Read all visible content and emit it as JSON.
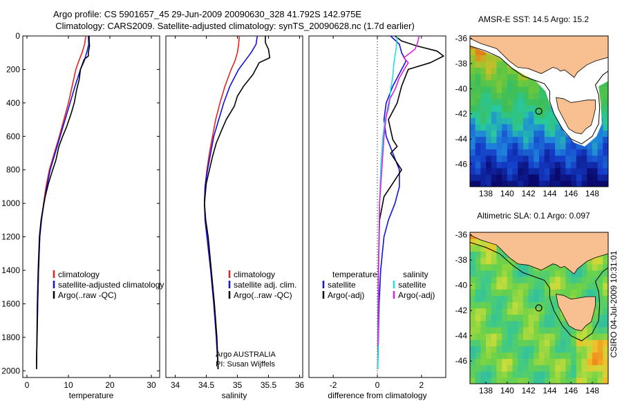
{
  "title": {
    "line1": "Argo profile: CS 5901657_45 29-Jun-2009 20090630_328 41.792S 142.975E",
    "line2": "Climatology: CARS2009. Satellite-adjusted climatology: synTS_20090628.nc (1.7d earlier)"
  },
  "side_text": "CSIRO 04-Jul-2009 10:31:01",
  "colors": {
    "climatology": "#e82020",
    "satellite": "#1010e0",
    "argo": "#000000",
    "salinity_satellite": "#20e0e0",
    "salinity_argo": "#e020e0",
    "land": "#f8c090"
  },
  "chart_data": [
    {
      "type": "line",
      "xlabel": "temperature",
      "ylabel": "",
      "xlim": [
        -1,
        32
      ],
      "ylim": [
        2040,
        0
      ],
      "xticks": [
        "0",
        "10",
        "20",
        "30"
      ],
      "xtick_values": [
        0,
        10,
        20,
        30
      ],
      "yticks": [
        "0",
        "200",
        "400",
        "600",
        "800",
        "1000",
        "1200",
        "1400",
        "1600",
        "1800",
        "2000"
      ],
      "ytick_values": [
        0,
        200,
        400,
        600,
        800,
        1000,
        1200,
        1400,
        1600,
        1800,
        2000
      ],
      "legend_title": [],
      "legend": [
        {
          "label": "climatology",
          "color": "#e82020"
        },
        {
          "label": "satellite-adjusted climatology",
          "color": "#1010e0"
        },
        {
          "label": "Argo(..raw -QC)",
          "color": "#000000"
        }
      ],
      "notes": [],
      "series": [
        {
          "name": "climatology",
          "color": "#e82020",
          "x": [
            14.2,
            13.9,
            13.3,
            12.5,
            11.8,
            10.9,
            10.0,
            8.9,
            7.8,
            6.6,
            5.4,
            4.6,
            4.0,
            3.5,
            3.1,
            2.8,
            2.6,
            2.45,
            2.35,
            2.3
          ],
          "y": [
            0,
            50,
            100,
            150,
            200,
            300,
            400,
            500,
            600,
            700,
            800,
            900,
            1000,
            1100,
            1200,
            1400,
            1600,
            1800,
            1900,
            1990
          ]
        },
        {
          "name": "satellite-adjusted climatology",
          "color": "#1010e0",
          "x": [
            14.8,
            14.9,
            14.4,
            13.8,
            12.9,
            11.6,
            10.4,
            9.2,
            8.0,
            6.8,
            5.6,
            4.8,
            4.1,
            3.5,
            3.1,
            2.8,
            2.6,
            2.45,
            2.35,
            2.3
          ],
          "y": [
            0,
            50,
            100,
            150,
            200,
            300,
            400,
            500,
            600,
            700,
            800,
            900,
            1000,
            1100,
            1200,
            1400,
            1600,
            1800,
            1900,
            1990
          ]
        },
        {
          "name": "Argo(..raw -QC)",
          "color": "#000000",
          "x": [
            15.0,
            15.0,
            15.1,
            14.8,
            14.8,
            13.8,
            12.9,
            12.6,
            12.0,
            11.4,
            10.7,
            9.6,
            8.6,
            7.7,
            7.0,
            6.2,
            5.2,
            4.4,
            3.8,
            3.4,
            3.0,
            2.7,
            2.5,
            2.4,
            2.3
          ],
          "y": [
            0,
            30,
            60,
            100,
            120,
            140,
            200,
            260,
            320,
            400,
            460,
            540,
            600,
            660,
            740,
            800,
            880,
            960,
            1040,
            1100,
            1200,
            1400,
            1600,
            1800,
            1990
          ]
        }
      ]
    },
    {
      "type": "line",
      "xlabel": "salinity",
      "ylabel": "",
      "xlim": [
        33.85,
        36.05
      ],
      "ylim": [
        2040,
        0
      ],
      "xticks": [
        "34",
        "34.5",
        "35",
        "35.5",
        "36"
      ],
      "xtick_values": [
        34,
        34.5,
        35,
        35.5,
        36
      ],
      "yticks": [],
      "ytick_values": [],
      "legend_title": [],
      "legend": [
        {
          "label": "climatology",
          "color": "#e82020"
        },
        {
          "label": "satellite adj. clim.",
          "color": "#1010e0"
        },
        {
          "label": "Argo(..raw -QC)",
          "color": "#000000"
        }
      ],
      "notes": [
        "Argo AUSTRALIA",
        "PI: Susan Wijffels"
      ],
      "series": [
        {
          "name": "climatology",
          "color": "#e82020",
          "x": [
            35.03,
            35.02,
            35.0,
            34.96,
            34.9,
            34.8,
            34.72,
            34.65,
            34.6,
            34.55,
            34.51,
            34.48,
            34.47,
            34.49,
            34.53,
            34.58,
            34.63,
            34.67,
            34.69
          ],
          "y": [
            0,
            50,
            100,
            150,
            200,
            300,
            400,
            500,
            600,
            700,
            800,
            900,
            1000,
            1100,
            1200,
            1400,
            1600,
            1800,
            1990
          ]
        },
        {
          "name": "satellite adj. clim.",
          "color": "#1010e0",
          "x": [
            35.32,
            35.3,
            35.22,
            35.12,
            35.02,
            34.88,
            34.78,
            34.7,
            34.62,
            34.57,
            34.52,
            34.48,
            34.47,
            34.48,
            34.51,
            34.57,
            34.62,
            34.66,
            34.69
          ],
          "y": [
            0,
            50,
            100,
            150,
            200,
            300,
            400,
            500,
            600,
            700,
            800,
            900,
            1000,
            1100,
            1200,
            1400,
            1600,
            1800,
            1990
          ]
        },
        {
          "name": "Argo(..raw -QC)",
          "color": "#000000",
          "x": [
            35.45,
            35.45,
            35.5,
            35.52,
            35.35,
            35.25,
            35.1,
            35.0,
            34.95,
            34.82,
            34.75,
            34.66,
            34.6,
            34.55,
            34.5,
            34.48,
            34.47,
            34.49,
            34.53,
            34.58,
            34.63,
            34.67,
            34.69
          ],
          "y": [
            0,
            40,
            80,
            130,
            160,
            230,
            300,
            360,
            420,
            500,
            560,
            640,
            720,
            800,
            880,
            960,
            1000,
            1100,
            1200,
            1400,
            1600,
            1800,
            1990
          ]
        }
      ]
    },
    {
      "type": "line",
      "xlabel": "difference from climatology",
      "ylabel": "",
      "xlim": [
        -3.1,
        3.1
      ],
      "ylim": [
        2040,
        0
      ],
      "xticks": [
        "-2",
        "0",
        "2"
      ],
      "xtick_values": [
        -2,
        0,
        2
      ],
      "yticks": [],
      "ytick_values": [],
      "legend_title": [
        "temperature",
        "salinity"
      ],
      "legend": [
        {
          "label": "satellite",
          "color": "#1010e0"
        },
        {
          "label": "Argo(-adj)",
          "color": "#000000"
        },
        {
          "label": "satellite",
          "color": "#20e0e0"
        },
        {
          "label": "Argo(-adj)",
          "color": "#e020e0"
        }
      ],
      "notes": [],
      "series": [
        {
          "name": "temperature satellite",
          "color": "#1010e0",
          "x": [
            0.6,
            1.0,
            1.1,
            1.3,
            1.1,
            0.7,
            0.4,
            0.3,
            0.4,
            0.7,
            1.0,
            1.0,
            0.8,
            0.5,
            0.3,
            0.15,
            0.08,
            0.05,
            0.03,
            0.02
          ],
          "y": [
            0,
            50,
            100,
            150,
            200,
            300,
            400,
            500,
            600,
            700,
            800,
            900,
            1000,
            1100,
            1200,
            1400,
            1600,
            1800,
            1900,
            1990
          ]
        },
        {
          "name": "temperature Argo(-adj)",
          "color": "#000000",
          "x": [
            0.8,
            1.1,
            1.8,
            2.7,
            3.0,
            2.4,
            1.4,
            1.1,
            0.9,
            0.5,
            0.6,
            0.7,
            0.9,
            0.6,
            0.9,
            1.1,
            0.9,
            0.6,
            0.3,
            0.1,
            0.05,
            0.02
          ],
          "y": [
            0,
            30,
            60,
            90,
            120,
            160,
            200,
            300,
            400,
            500,
            560,
            620,
            660,
            700,
            760,
            800,
            840,
            900,
            960,
            1100,
            1400,
            1990
          ]
        },
        {
          "name": "salinity satellite",
          "color": "#20e0e0",
          "x": [
            0.9,
            0.85,
            0.75,
            0.7,
            0.6,
            0.55,
            0.5,
            0.35,
            0.25,
            0.15,
            0.1,
            0.06,
            0.04,
            0.02
          ],
          "y": [
            0,
            80,
            160,
            240,
            320,
            400,
            440,
            500,
            600,
            800,
            1000,
            1400,
            1800,
            1990
          ]
        },
        {
          "name": "salinity Argo(-adj)",
          "color": "#e020e0",
          "x": [
            1.9,
            1.8,
            1.7,
            1.2,
            1.4,
            1.0,
            0.8,
            0.55,
            0.4,
            0.3,
            0.2,
            0.1,
            0.05,
            0.02
          ],
          "y": [
            0,
            50,
            80,
            130,
            160,
            250,
            320,
            380,
            480,
            600,
            800,
            1000,
            1400,
            1850
          ]
        }
      ]
    },
    {
      "type": "heatmap",
      "title": "AMSR-E SST: 14.5 Argo: 15.2",
      "xlim": [
        136.5,
        149.5
      ],
      "ylim": [
        -47.8,
        -35.8
      ],
      "xticks": [
        "138",
        "140",
        "142",
        "144",
        "146",
        "148"
      ],
      "xtick_values": [
        138,
        140,
        142,
        144,
        146,
        148
      ],
      "yticks": [
        "-36",
        "-38",
        "-40",
        "-42",
        "-44",
        "-46"
      ],
      "ytick_values": [
        -36,
        -38,
        -40,
        -42,
        -44,
        -46
      ],
      "profile_location": {
        "lon": 142.975,
        "lat": -41.792
      }
    },
    {
      "type": "heatmap",
      "title": "Altimetric SLA: 0.1 Argo: 0.097",
      "xlim": [
        136.5,
        149.5
      ],
      "ylim": [
        -47.8,
        -35.8
      ],
      "xticks": [
        "138",
        "140",
        "142",
        "144",
        "146",
        "148"
      ],
      "xtick_values": [
        138,
        140,
        142,
        144,
        146,
        148
      ],
      "yticks": [
        "-36",
        "-38",
        "-40",
        "-42",
        "-44",
        "-46"
      ],
      "ytick_values": [
        -36,
        -38,
        -40,
        -42,
        -44,
        -46
      ],
      "profile_location": {
        "lon": 142.975,
        "lat": -41.792
      }
    }
  ]
}
